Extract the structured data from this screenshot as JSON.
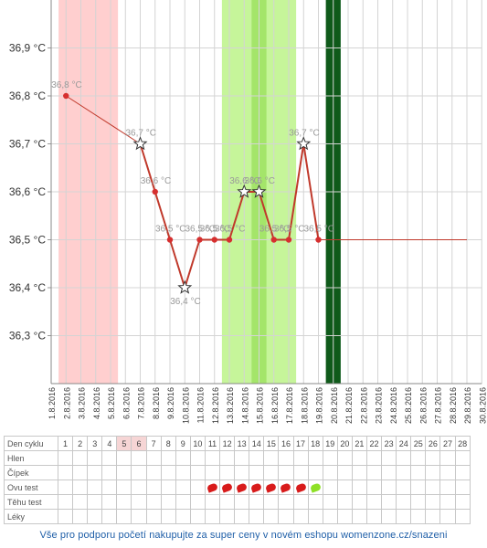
{
  "chart_data": {
    "type": "line",
    "title": "",
    "xlabel": "",
    "ylabel": "",
    "x": [
      "1.8.2016",
      "2.8.2016",
      "3.8.2016",
      "4.8.2016",
      "5.8.2016",
      "6.8.2016",
      "7.8.2016",
      "8.8.2016",
      "9.8.2016",
      "10.8.2016",
      "11.8.2016",
      "12.8.2016",
      "13.8.2016",
      "14.8.2016",
      "15.8.2016",
      "16.8.2016",
      "17.8.2016",
      "18.8.2016",
      "19.8.2016",
      "20.8.2016",
      "21.8.2016",
      "22.8.2016",
      "23.8.2016",
      "24.8.2016",
      "25.8.2016",
      "26.8.2016",
      "27.8.2016",
      "28.8.2016",
      "29.8.2016",
      "30.8.2016"
    ],
    "ylim": [
      36.2,
      37.0
    ],
    "y_ticks": [
      {
        "value": 36.3,
        "label": "36,3 °C"
      },
      {
        "value": 36.4,
        "label": "36,4 °C"
      },
      {
        "value": 36.5,
        "label": "36,5 °C"
      },
      {
        "value": 36.6,
        "label": "36,6 °C"
      },
      {
        "value": 36.7,
        "label": "36,7 °C"
      },
      {
        "value": 36.8,
        "label": "36,8 °C"
      },
      {
        "value": 36.9,
        "label": "36,9 °C"
      }
    ],
    "grid": true,
    "series": [
      {
        "points": [
          {
            "date": "2.8.2016",
            "value": 36.8,
            "label": "36,8 °C",
            "marker": "dot"
          },
          {
            "date": "7.8.2016",
            "value": 36.7,
            "label": "36,7 °C",
            "marker": "star"
          },
          {
            "date": "8.8.2016",
            "value": 36.6,
            "label": "36,6 °C",
            "marker": "dot"
          },
          {
            "date": "9.8.2016",
            "value": 36.5,
            "label": "36,5 °C",
            "marker": "dot"
          },
          {
            "date": "10.8.2016",
            "value": 36.4,
            "label": "36,4 °C",
            "marker": "star"
          },
          {
            "date": "11.8.2016",
            "value": 36.5,
            "label": "36,5 °C",
            "marker": "dot"
          },
          {
            "date": "12.8.2016",
            "value": 36.5,
            "label": "36,5 °C",
            "marker": "dot"
          },
          {
            "date": "13.8.2016",
            "value": 36.5,
            "label": "36,5 °C",
            "marker": "dot"
          },
          {
            "date": "14.8.2016",
            "value": 36.6,
            "label": "36,6 °C",
            "marker": "star"
          },
          {
            "date": "15.8.2016",
            "value": 36.6,
            "label": "36,6 °C",
            "marker": "star"
          },
          {
            "date": "16.8.2016",
            "value": 36.5,
            "label": "36,5 °C",
            "marker": "dot"
          },
          {
            "date": "17.8.2016",
            "value": 36.5,
            "label": "36,5 °C",
            "marker": "dot"
          },
          {
            "date": "18.8.2016",
            "value": 36.7,
            "label": "36,7 °C",
            "marker": "star"
          },
          {
            "date": "19.8.2016",
            "value": 36.5,
            "label": "36,5 °C",
            "marker": "dot"
          }
        ],
        "extension_to": "29.8.2016"
      }
    ],
    "bands": [
      {
        "from": "1.8.2016",
        "to": "5.8.2016",
        "color": "#ffcfcf"
      },
      {
        "from": "12.8.2016",
        "to": "17.8.2016",
        "color": "#c6f59a"
      },
      {
        "from": "14.8.2016",
        "to": "15.8.2016",
        "color": "#a4e56a"
      },
      {
        "from": "19.8.2016",
        "to": "20.8.2016",
        "color": "#0f5a1a"
      }
    ],
    "colors": {
      "line": "#c0392b",
      "dot": "#d62f2f",
      "label": "#999999",
      "grid": "#d4d4d4"
    }
  },
  "table": {
    "header_label": "Den cyklu",
    "days": [
      "1",
      "2",
      "3",
      "4",
      "5",
      "6",
      "7",
      "8",
      "9",
      "10",
      "11",
      "12",
      "13",
      "14",
      "15",
      "16",
      "17",
      "18",
      "19",
      "20",
      "21",
      "22",
      "23",
      "24",
      "25",
      "26",
      "27",
      "28"
    ],
    "period_days": [
      "5",
      "6"
    ],
    "rows": [
      {
        "label": "Hlen"
      },
      {
        "label": "Čípek"
      },
      {
        "label": "Ovu test"
      },
      {
        "label": "Těhu test"
      },
      {
        "label": "Léky"
      }
    ],
    "ovu_results": {
      "11": "negative",
      "12": "negative",
      "13": "negative",
      "14": "negative",
      "15": "negative",
      "16": "negative",
      "17": "negative",
      "18": "positive"
    }
  },
  "footer": {
    "text": "Vše pro podporu početí nakupujte za super ceny v novém eshopu womenzone.cz/snazeni"
  }
}
